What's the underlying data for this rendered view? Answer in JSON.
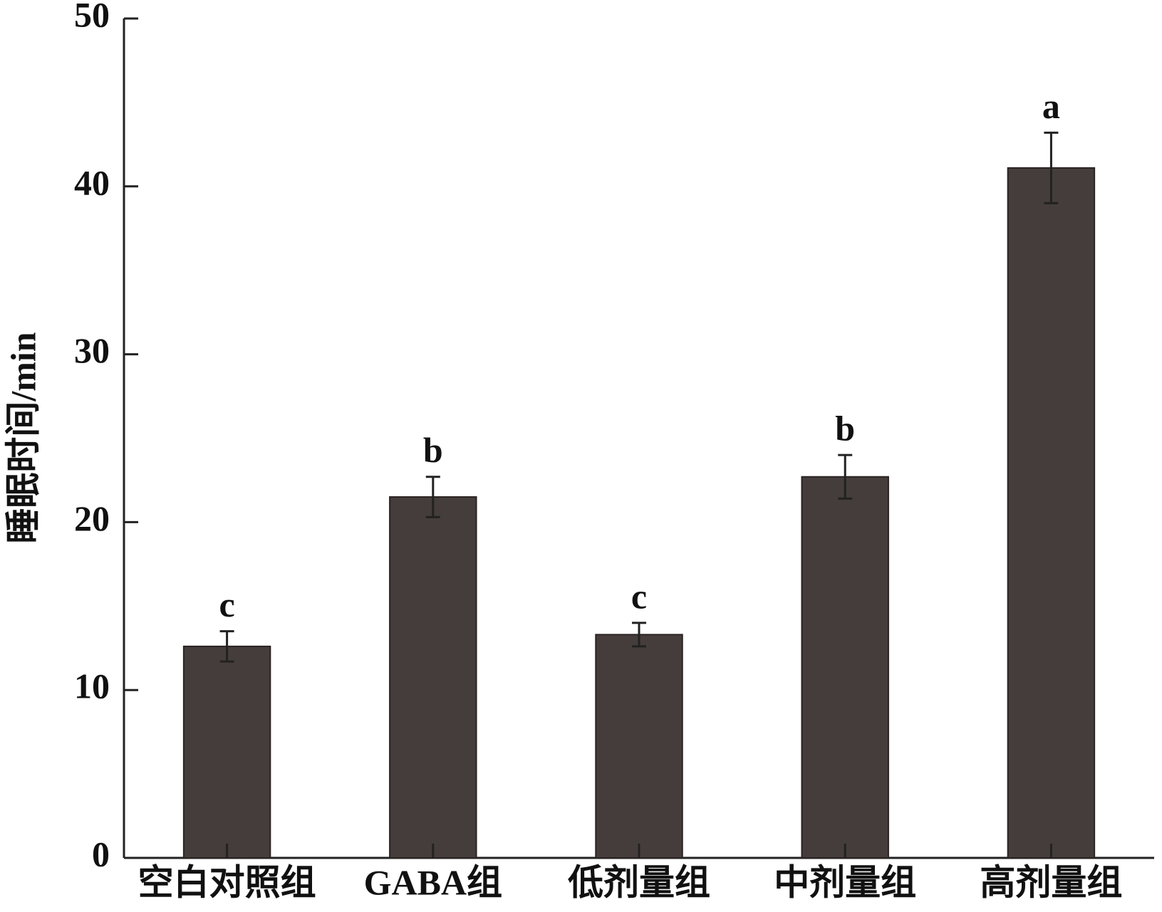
{
  "chart_data": {
    "type": "bar",
    "y_label": "睡眠时间/min",
    "categories": [
      "空白对照组",
      "GABA组",
      "低剂量组",
      "中剂量组",
      "高剂量组"
    ],
    "values": [
      12.6,
      21.5,
      13.3,
      22.7,
      41.1
    ],
    "errors": [
      0.9,
      1.2,
      0.7,
      1.3,
      2.1
    ],
    "annotations": [
      "c",
      "b",
      "c",
      "b",
      "a"
    ],
    "color": "#453d3b",
    "ylim": [
      0,
      50
    ],
    "yticks": [
      0,
      10,
      20,
      30,
      40,
      50
    ],
    "grid": false
  }
}
